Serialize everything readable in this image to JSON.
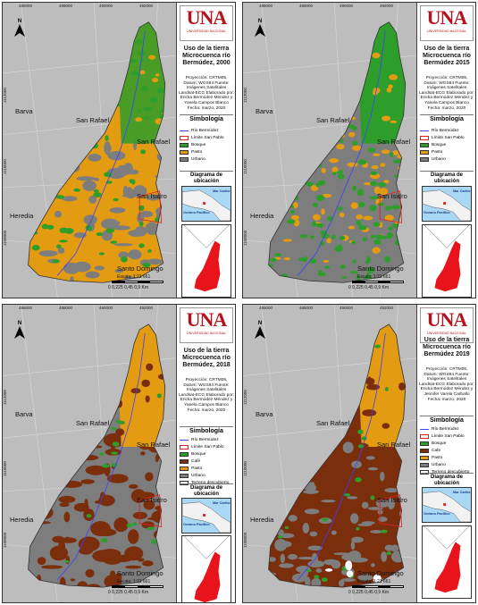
{
  "colors": {
    "bosque": "#2e9e2b",
    "pasto": "#e39b12",
    "urbano": "#7d7d7d",
    "cafe": "#7a2e0c",
    "terreno": "#ffffff",
    "rio": "#4040ff",
    "limite": "#e02020",
    "background": "#bdbdbd"
  },
  "logo": {
    "text": "UNA",
    "subtitle": "UNIVERSIDAD NACIONAL"
  },
  "ticks": {
    "x": [
      "486000",
      "488000",
      "490000",
      "492000"
    ],
    "y": [
      "1112000",
      "1110000",
      "1108000",
      "1106000"
    ]
  },
  "north_label": "N",
  "places": [
    "Barva",
    "San Rafael",
    "San Rafael",
    "San Isidro",
    "Heredia",
    "Santo Domingo"
  ],
  "scale": {
    "ratio": "Escala: 1:21 661",
    "labels": "0   0,225 0,45        0,9 Km"
  },
  "diagram_title": "Diagrama de ubicación",
  "inset_labels": {
    "caribe": "Mar Caribe",
    "pacifico": "Océano Pacífico"
  },
  "panels": [
    {
      "title": "Uso de la tierra Microcuenca río Bermúdez, 2000",
      "meta": "Proyección: CRTM05, Datum: WGS84 Fuente: Imágenes Satelitales Landsat-ECG Elaborado por: Ericka Bermúdez Méndez y Yanela Campos Blanco Fecha: marzo, 2020",
      "legend_title": "Simbología",
      "legend": [
        {
          "label": "Río Bermúdez",
          "kind": "line",
          "color": "#4040ff"
        },
        {
          "label": "Límite San Pablo",
          "kind": "outline",
          "color": "#e02020"
        },
        {
          "label": "Bosque",
          "kind": "fill",
          "color": "#2e9e2b"
        },
        {
          "label": "Pasto",
          "kind": "fill",
          "color": "#e39b12"
        },
        {
          "label": "Urbano",
          "kind": "fill",
          "color": "#7d7d7d"
        }
      ]
    },
    {
      "title": "Uso de la tierra Microcuenca río Bermúdez 2015",
      "meta": "Proyección: CRTM05, Datum: WGS84 Fuente: Imágenes Satelitales Landsat-ECG Elaborado por: Ericka Bermúdez Méndez y Yanela Campos Blanco Fecha: marzo, 2020",
      "legend_title": "Simbología",
      "legend": [
        {
          "label": "Río Bermúdez",
          "kind": "line",
          "color": "#4040ff"
        },
        {
          "label": "Límite San Pablo",
          "kind": "outline",
          "color": "#e02020"
        },
        {
          "label": "Bosque",
          "kind": "fill",
          "color": "#2e9e2b"
        },
        {
          "label": "Pasto",
          "kind": "fill",
          "color": "#e39b12"
        },
        {
          "label": "Urbano",
          "kind": "fill",
          "color": "#7d7d7d"
        }
      ]
    },
    {
      "title": "Uso de la tierra Microcuenca río Bermúdez, 2018",
      "meta": "Proyección: CRTM05, Datum: WGS84 Fuente: Imágenes Satelitales Landsat-ECG Elaborado por: Ericka Bermúdez Méndez y Yanela Campos Blanco Fecha: marzo, 2020",
      "legend_title": "Simbología",
      "legend": [
        {
          "label": "Río Bermúdez",
          "kind": "line",
          "color": "#4040ff"
        },
        {
          "label": "Límite San Pablo",
          "kind": "outline",
          "color": "#e02020"
        },
        {
          "label": "Bosque",
          "kind": "fill",
          "color": "#2e9e2b"
        },
        {
          "label": "Café",
          "kind": "fill",
          "color": "#7a2e0c"
        },
        {
          "label": "Pasto",
          "kind": "fill",
          "color": "#e39b12"
        },
        {
          "label": "Urbano",
          "kind": "fill",
          "color": "#7d7d7d"
        },
        {
          "label": "Terreno descubierto",
          "kind": "fill",
          "color": "#ffffff"
        }
      ]
    },
    {
      "title": "Uso de la tierra Microcuenca río Bermúdez 2019",
      "meta": "Proyección: CRTM05, Datum: WGS84 Fuente: Imágenes Satelitales Landsat-ECG Elaborado por: Ericka Bermúdez Méndez y Jennifer Varela Carballo Fecha: marzo, 2020",
      "legend_title": "Simbología",
      "legend": [
        {
          "label": "Río Bermúdez",
          "kind": "line",
          "color": "#4040ff"
        },
        {
          "label": "Límite San Pablo",
          "kind": "outline",
          "color": "#e02020"
        },
        {
          "label": "Bosque",
          "kind": "fill",
          "color": "#2e9e2b"
        },
        {
          "label": "Cafe",
          "kind": "fill",
          "color": "#7a2e0c"
        },
        {
          "label": "Pasto",
          "kind": "fill",
          "color": "#e39b12"
        },
        {
          "label": "Urbano",
          "kind": "fill",
          "color": "#7d7d7d"
        },
        {
          "label": "Terreno descubierto",
          "kind": "fill",
          "color": "#ffffff"
        }
      ]
    }
  ]
}
